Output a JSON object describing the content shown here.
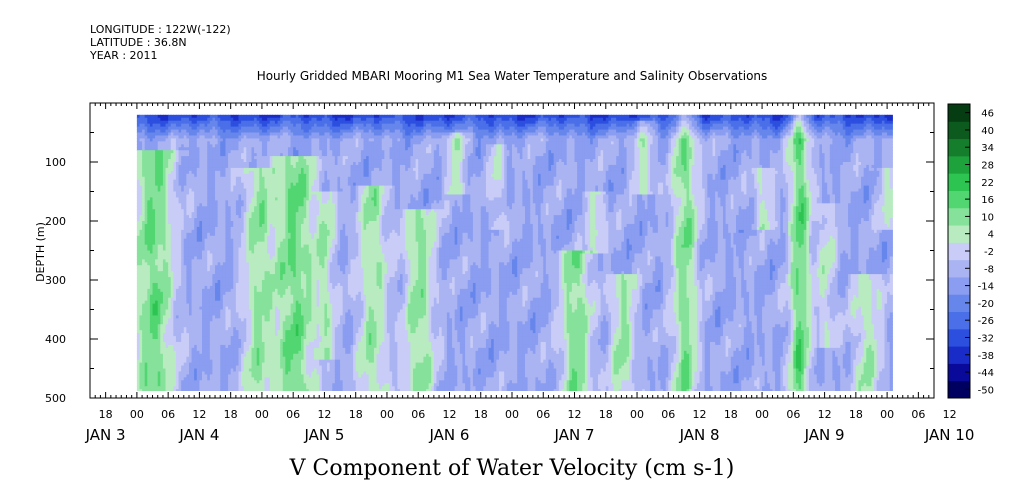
{
  "header": {
    "longitude": "LONGITUDE : 122W(-122)",
    "latitude": "LATITUDE : 36.8N",
    "year": "YEAR : 2011"
  },
  "chart_data": {
    "type": "heatmap",
    "title": "Hourly Gridded MBARI Mooring M1 Sea Water Temperature and Salinity Observations",
    "xlabel": "V Component of Water Velocity (cm s-1)",
    "ylabel": "DEPTH (m)",
    "x_hours_range": [
      -9,
      153
    ],
    "data_hours_range": [
      0,
      145
    ],
    "ylim": [
      500,
      0
    ],
    "depth_range": [
      20,
      490
    ],
    "y_ticks": [
      100,
      200,
      300,
      400,
      500
    ],
    "y_tick_labels": [
      "100",
      "200",
      "300",
      "400",
      "500"
    ],
    "hour_tick_labels": [
      {
        "hour": -6,
        "label": "18"
      },
      {
        "hour": 0,
        "label": "00"
      },
      {
        "hour": 6,
        "label": "06"
      },
      {
        "hour": 12,
        "label": "12"
      },
      {
        "hour": 18,
        "label": "18"
      },
      {
        "hour": 24,
        "label": "00"
      },
      {
        "hour": 30,
        "label": "06"
      },
      {
        "hour": 36,
        "label": "12"
      },
      {
        "hour": 42,
        "label": "18"
      },
      {
        "hour": 48,
        "label": "00"
      },
      {
        "hour": 54,
        "label": "06"
      },
      {
        "hour": 60,
        "label": "12"
      },
      {
        "hour": 66,
        "label": "18"
      },
      {
        "hour": 72,
        "label": "00"
      },
      {
        "hour": 78,
        "label": "06"
      },
      {
        "hour": 84,
        "label": "12"
      },
      {
        "hour": 90,
        "label": "18"
      },
      {
        "hour": 96,
        "label": "00"
      },
      {
        "hour": 102,
        "label": "06"
      },
      {
        "hour": 108,
        "label": "12"
      },
      {
        "hour": 114,
        "label": "18"
      },
      {
        "hour": 120,
        "label": "00"
      },
      {
        "hour": 126,
        "label": "06"
      },
      {
        "hour": 132,
        "label": "12"
      },
      {
        "hour": 138,
        "label": "18"
      },
      {
        "hour": 144,
        "label": "00"
      },
      {
        "hour": 150,
        "label": "06"
      },
      {
        "hour": 156,
        "label": "12"
      }
    ],
    "day_labels": [
      {
        "hour": -6,
        "label": "JAN 3"
      },
      {
        "hour": 12,
        "label": "JAN 4"
      },
      {
        "hour": 36,
        "label": "JAN 5"
      },
      {
        "hour": 60,
        "label": "JAN 6"
      },
      {
        "hour": 84,
        "label": "JAN 7"
      },
      {
        "hour": 108,
        "label": "JAN 8"
      },
      {
        "hour": 132,
        "label": "JAN 9"
      },
      {
        "hour": 156,
        "label": "JAN 10"
      }
    ],
    "color_levels": [
      -50,
      -44,
      -38,
      -32,
      -26,
      -20,
      -14,
      -8,
      -2,
      4,
      10,
      16,
      22,
      28,
      34,
      40,
      46
    ],
    "colorbar_labels": [
      "46",
      "40",
      "34",
      "28",
      "22",
      "16",
      "10",
      "4",
      "-2",
      "-8",
      "-14",
      "-20",
      "-26",
      "-32",
      "-38",
      "-44",
      "-50"
    ],
    "colors": [
      "#000060",
      "#0a0a9a",
      "#1a2cc8",
      "#2c4fe0",
      "#4a6fe8",
      "#6686ec",
      "#8a9df0",
      "#aab4f2",
      "#c8ccf6",
      "#b8ecc0",
      "#86e29a",
      "#52d672",
      "#2ec452",
      "#1ea23c",
      "#147e2c",
      "#0c5a1e",
      "#063c12"
    ],
    "green_bands": [
      {
        "hour": 3,
        "top": 90,
        "bottom": 490,
        "width": 4,
        "amp": 24
      },
      {
        "hour": 23,
        "top": 120,
        "bottom": 490,
        "width": 3,
        "amp": 18
      },
      {
        "hour": 30,
        "top": 100,
        "bottom": 490,
        "width": 4,
        "amp": 24
      },
      {
        "hour": 36,
        "top": 160,
        "bottom": 420,
        "width": 2,
        "amp": 14
      },
      {
        "hour": 45,
        "top": 150,
        "bottom": 490,
        "width": 3,
        "amp": 18
      },
      {
        "hour": 54,
        "top": 190,
        "bottom": 490,
        "width": 3,
        "amp": 20
      },
      {
        "hour": 61,
        "top": 60,
        "bottom": 140,
        "width": 2,
        "amp": 14
      },
      {
        "hour": 69,
        "top": 80,
        "bottom": 200,
        "width": 1.5,
        "amp": 12
      },
      {
        "hour": 84,
        "top": 260,
        "bottom": 490,
        "width": 3,
        "amp": 22
      },
      {
        "hour": 88,
        "top": 160,
        "bottom": 240,
        "width": 2,
        "amp": 14
      },
      {
        "hour": 93,
        "top": 300,
        "bottom": 490,
        "width": 2.5,
        "amp": 18
      },
      {
        "hour": 97,
        "top": 40,
        "bottom": 140,
        "width": 2,
        "amp": 14
      },
      {
        "hour": 105,
        "top": 20,
        "bottom": 490,
        "width": 2.5,
        "amp": 22
      },
      {
        "hour": 120,
        "top": 120,
        "bottom": 200,
        "width": 2,
        "amp": 14
      },
      {
        "hour": 127,
        "top": 20,
        "bottom": 490,
        "width": 2,
        "amp": 26
      },
      {
        "hour": 132,
        "top": 180,
        "bottom": 400,
        "width": 2,
        "amp": 12
      },
      {
        "hour": 140,
        "top": 300,
        "bottom": 490,
        "width": 3,
        "amp": 16
      },
      {
        "hour": 144,
        "top": 120,
        "bottom": 200,
        "width": 2,
        "amp": 12
      }
    ],
    "grid": false
  }
}
